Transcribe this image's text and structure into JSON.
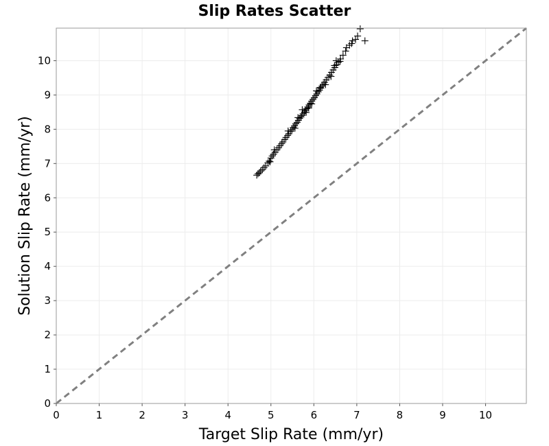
{
  "chart_data": {
    "type": "scatter",
    "title": "Slip Rates Scatter",
    "xlabel": "Target Slip Rate (mm/yr)",
    "ylabel": "Solution Slip Rate (mm/yr)",
    "xlim": [
      0,
      10.95
    ],
    "ylim": [
      0,
      10.95
    ],
    "xticks": [
      "0",
      "1",
      "2",
      "3",
      "4",
      "5",
      "6",
      "7",
      "8",
      "9",
      "10"
    ],
    "yticks": [
      "0",
      "1",
      "2",
      "3",
      "4",
      "5",
      "6",
      "7",
      "8",
      "9",
      "10"
    ],
    "grid": true,
    "marker": "plus",
    "reference_line": {
      "style": "dashed",
      "color": "#808080",
      "from": [
        0,
        0
      ],
      "to": [
        10.95,
        10.95
      ]
    },
    "series": [
      {
        "points": [
          [
            4.67,
            6.66
          ],
          [
            4.7,
            6.7
          ],
          [
            4.73,
            6.73
          ],
          [
            4.76,
            6.78
          ],
          [
            4.8,
            6.82
          ],
          [
            4.84,
            6.88
          ],
          [
            4.88,
            6.93
          ],
          [
            4.93,
            7.02
          ],
          [
            4.96,
            7.07
          ],
          [
            5.0,
            7.16
          ],
          [
            5.03,
            7.22
          ],
          [
            5.06,
            7.27
          ],
          [
            5.1,
            7.33
          ],
          [
            5.14,
            7.4
          ],
          [
            5.18,
            7.46
          ],
          [
            5.21,
            7.52
          ],
          [
            5.25,
            7.58
          ],
          [
            5.28,
            7.63
          ],
          [
            5.32,
            7.7
          ],
          [
            5.35,
            7.76
          ],
          [
            5.39,
            7.82
          ],
          [
            5.42,
            7.87
          ],
          [
            5.46,
            7.94
          ],
          [
            5.49,
            7.99
          ],
          [
            5.52,
            8.05
          ],
          [
            5.55,
            8.1
          ],
          [
            5.58,
            8.16
          ],
          [
            5.61,
            8.2
          ],
          [
            5.64,
            8.26
          ],
          [
            5.67,
            8.32
          ],
          [
            5.7,
            8.36
          ],
          [
            5.72,
            8.4
          ],
          [
            5.75,
            8.45
          ],
          [
            5.78,
            8.5
          ],
          [
            5.8,
            8.55
          ],
          [
            5.83,
            8.6
          ],
          [
            5.86,
            8.65
          ],
          [
            5.89,
            8.71
          ],
          [
            5.92,
            8.76
          ],
          [
            5.95,
            8.82
          ],
          [
            5.98,
            8.87
          ],
          [
            6.01,
            8.92
          ],
          [
            6.04,
            8.98
          ],
          [
            6.07,
            9.03
          ],
          [
            6.1,
            9.09
          ],
          [
            6.13,
            9.14
          ],
          [
            6.16,
            9.2
          ],
          [
            6.19,
            9.26
          ],
          [
            6.22,
            9.31
          ],
          [
            6.25,
            9.37
          ],
          [
            6.29,
            9.44
          ],
          [
            6.33,
            9.51
          ],
          [
            6.37,
            9.58
          ],
          [
            6.41,
            9.66
          ],
          [
            6.45,
            9.73
          ],
          [
            6.49,
            9.8
          ],
          [
            6.53,
            9.88
          ],
          [
            6.57,
            9.95
          ],
          [
            6.62,
            10.05
          ],
          [
            6.68,
            10.16
          ],
          [
            6.74,
            10.28
          ],
          [
            6.83,
            10.45
          ],
          [
            6.9,
            10.58
          ],
          [
            6.97,
            10.62
          ],
          [
            7.08,
            10.93
          ],
          [
            5.56,
            8.03
          ],
          [
            5.63,
            8.34
          ],
          [
            5.82,
            8.49
          ],
          [
            6.06,
            9.12
          ],
          [
            6.27,
            9.3
          ],
          [
            6.48,
            9.86
          ],
          [
            5.73,
            8.57
          ],
          [
            5.95,
            8.74
          ],
          [
            6.4,
            9.54
          ],
          [
            6.76,
            10.38
          ],
          [
            6.88,
            10.5
          ],
          [
            7.19,
            10.58
          ],
          [
            7.02,
            10.72
          ],
          [
            6.52,
            10.0
          ],
          [
            6.61,
            9.98
          ],
          [
            5.4,
            7.95
          ],
          [
            5.08,
            7.4
          ],
          [
            4.98,
            7.05
          ],
          [
            5.88,
            8.62
          ],
          [
            6.15,
            9.22
          ]
        ]
      }
    ]
  }
}
